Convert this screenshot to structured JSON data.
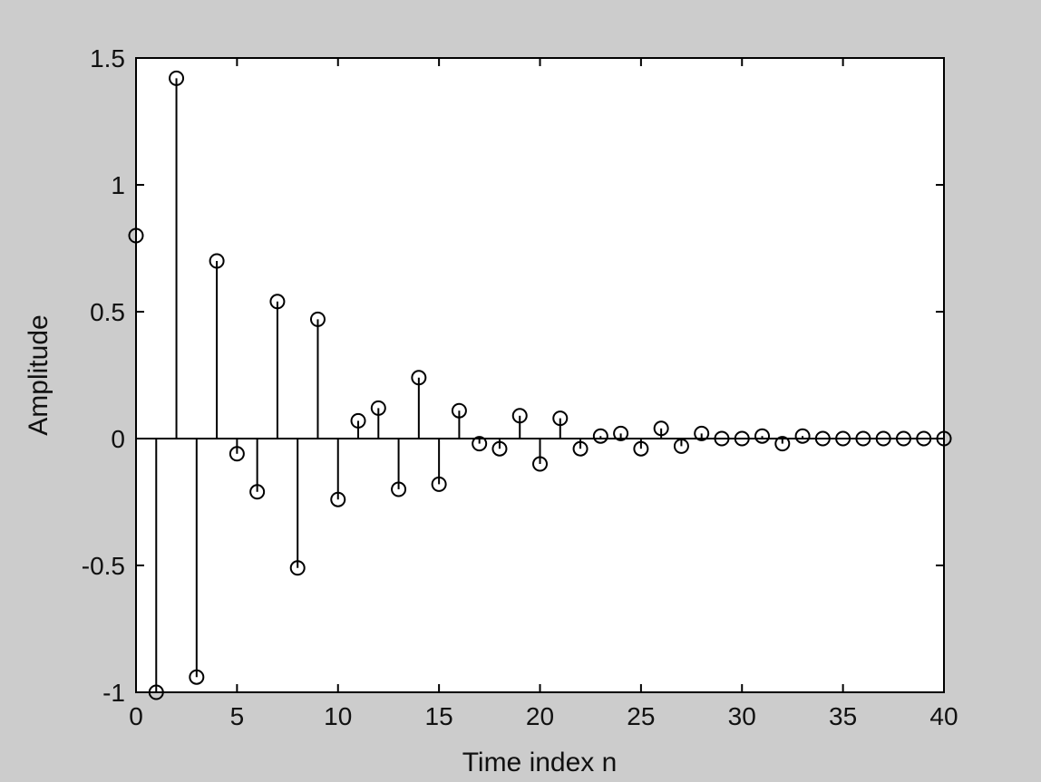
{
  "chart_data": {
    "type": "stem",
    "title": "",
    "xlabel": "Time index n",
    "ylabel": "Amplitude",
    "xlim": [
      0,
      40
    ],
    "ylim": [
      -1,
      1.5
    ],
    "xticks": [
      0,
      5,
      10,
      15,
      20,
      25,
      30,
      35,
      40
    ],
    "xtick_labels": [
      "0",
      "5",
      "10",
      "15",
      "20",
      "25",
      "30",
      "35",
      "40"
    ],
    "yticks": [
      -1,
      -0.5,
      0,
      0.5,
      1,
      1.5
    ],
    "ytick_labels": [
      "-1",
      "-0.5",
      "0",
      "0.5",
      "1",
      "1.5"
    ],
    "grid": false,
    "marker": "circle",
    "colors": {
      "figure_background": "#cccccc",
      "axes_background": "#ffffff",
      "line": "#000000"
    },
    "x": [
      0,
      1,
      2,
      3,
      4,
      5,
      6,
      7,
      8,
      9,
      10,
      11,
      12,
      13,
      14,
      15,
      16,
      17,
      18,
      19,
      20,
      21,
      22,
      23,
      24,
      25,
      26,
      27,
      28,
      29,
      30,
      31,
      32,
      33,
      34,
      35,
      36,
      37,
      38,
      39,
      40
    ],
    "y": [
      0.8,
      -1.0,
      1.42,
      -0.94,
      0.7,
      -0.06,
      -0.21,
      0.54,
      -0.51,
      0.47,
      -0.24,
      0.07,
      0.12,
      -0.2,
      0.24,
      -0.18,
      0.11,
      -0.02,
      -0.04,
      0.09,
      -0.1,
      0.08,
      -0.04,
      0.01,
      0.02,
      -0.04,
      0.04,
      -0.03,
      0.02,
      0.0,
      0.0,
      0.01,
      -0.02,
      0.01,
      0.0,
      0.0,
      0.0,
      0.0,
      0.0,
      0.0,
      0.0
    ]
  }
}
